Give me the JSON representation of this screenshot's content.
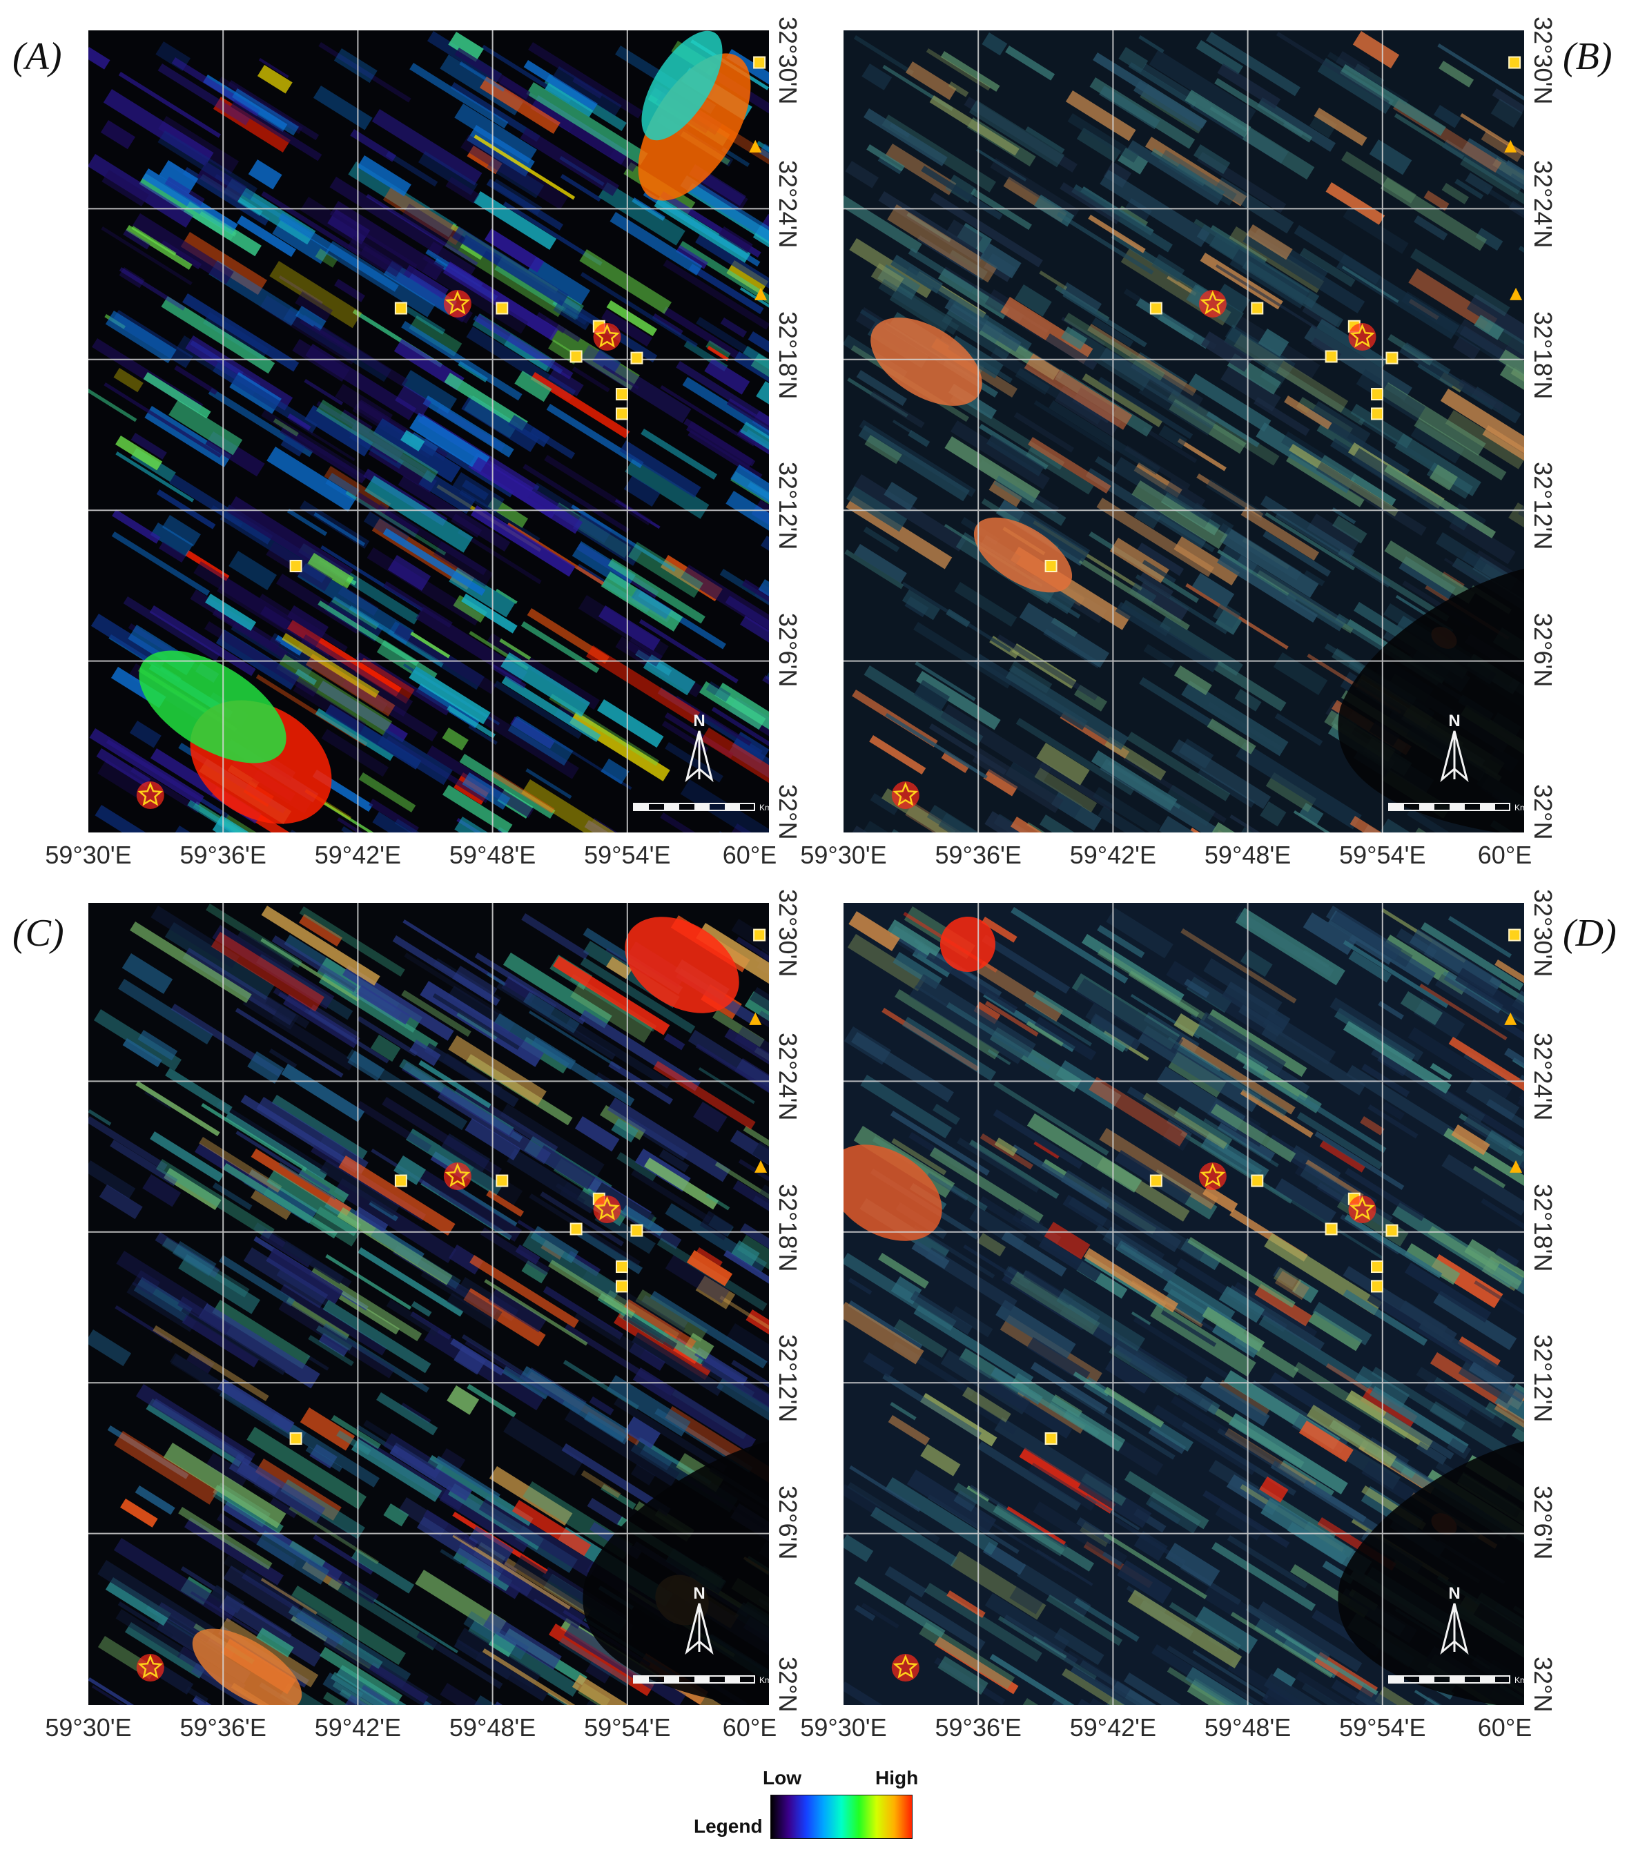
{
  "panels": [
    {
      "label": "(A)",
      "scheme": "A"
    },
    {
      "label": "(B)",
      "scheme": "B"
    },
    {
      "label": "(C)",
      "scheme": "C"
    },
    {
      "label": "(D)",
      "scheme": "D"
    }
  ],
  "axes": {
    "longitude_labels": [
      "59°30'E",
      "59°36'E",
      "59°42'E",
      "59°48'E",
      "59°54'E",
      "60°E"
    ],
    "latitude_labels": [
      "32°30'N",
      "32°24'N",
      "32°18'N",
      "32°12'N",
      "32°6'N",
      "32°N"
    ]
  },
  "north_arrow": {
    "letter": "N",
    "scale_unit": "Km"
  },
  "legend": {
    "title": "Legend",
    "low_label": "Low",
    "high_label": "High",
    "colors": [
      "#000000",
      "#3a008c",
      "#1540ff",
      "#00a8ff",
      "#00ffc8",
      "#22ff22",
      "#d4ff00",
      "#ffb000",
      "#ff2200"
    ]
  },
  "markers": {
    "star_color": "#ff2a1a",
    "square_color": "#ffd21a",
    "triangle_color": "#ffb400",
    "stars": [
      {
        "lon": 59.774,
        "lat": 32.337
      },
      {
        "lon": 59.885,
        "lat": 32.315
      },
      {
        "lon": 59.546,
        "lat": 32.011
      }
    ],
    "squares": [
      {
        "lon": 59.732,
        "lat": 32.334
      },
      {
        "lon": 59.807,
        "lat": 32.334
      },
      {
        "lon": 59.879,
        "lat": 32.322
      },
      {
        "lon": 59.862,
        "lat": 32.302
      },
      {
        "lon": 59.907,
        "lat": 32.301
      },
      {
        "lon": 59.896,
        "lat": 32.277
      },
      {
        "lon": 59.896,
        "lat": 32.264
      },
      {
        "lon": 59.654,
        "lat": 32.163
      },
      {
        "lon": 59.998,
        "lat": 32.497
      }
    ],
    "triangles": [
      {
        "lon": 59.995,
        "lat": 32.441
      },
      {
        "lon": 59.999,
        "lat": 32.343
      }
    ]
  }
}
